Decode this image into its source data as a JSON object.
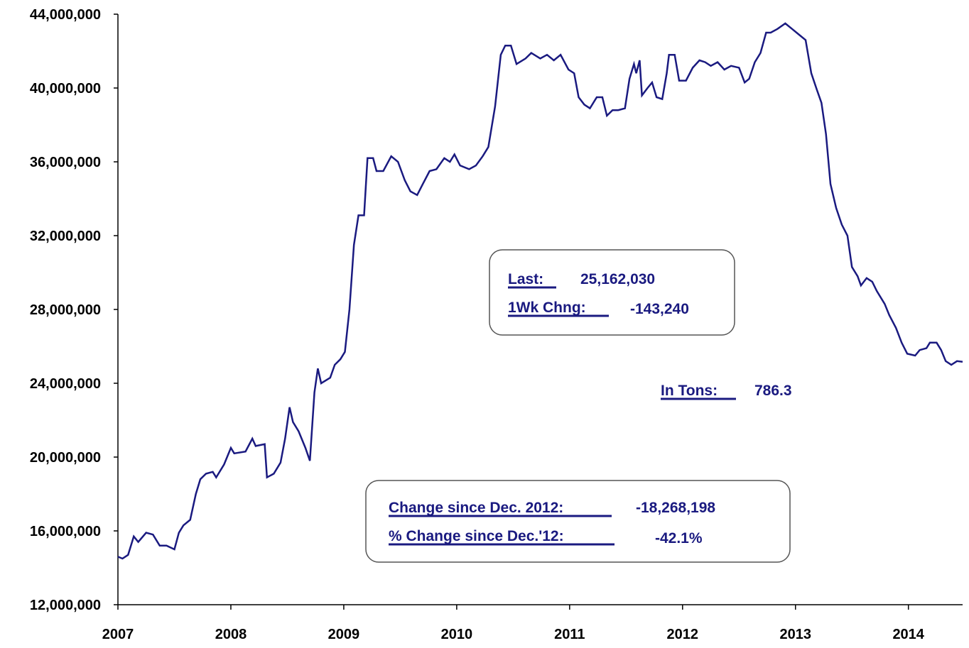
{
  "chart_data": {
    "type": "line",
    "x": [
      2007.0,
      2007.04,
      2007.09,
      2007.14,
      2007.18,
      2007.25,
      2007.31,
      2007.37,
      2007.43,
      2007.5,
      2007.54,
      2007.58,
      2007.64,
      2007.69,
      2007.73,
      2007.78,
      2007.84,
      2007.87,
      2007.94,
      2008.0,
      2008.03,
      2008.13,
      2008.19,
      2008.22,
      2008.3,
      2008.32,
      2008.38,
      2008.44,
      2008.48,
      2008.52,
      2008.55,
      2008.6,
      2008.66,
      2008.7,
      2008.74,
      2008.77,
      2008.8,
      2008.88,
      2008.92,
      2008.97,
      2009.01,
      2009.05,
      2009.09,
      2009.13,
      2009.18,
      2009.21,
      2009.26,
      2009.29,
      2009.35,
      2009.42,
      2009.48,
      2009.54,
      2009.59,
      2009.65,
      2009.7,
      2009.76,
      2009.82,
      2009.89,
      2009.94,
      2009.98,
      2010.03,
      2010.11,
      2010.17,
      2010.23,
      2010.28,
      2010.34,
      2010.39,
      2010.43,
      2010.48,
      2010.53,
      2010.61,
      2010.66,
      2010.74,
      2010.8,
      2010.86,
      2010.92,
      2010.99,
      2011.04,
      2011.08,
      2011.13,
      2011.18,
      2011.24,
      2011.29,
      2011.33,
      2011.38,
      2011.43,
      2011.49,
      2011.53,
      2011.57,
      2011.59,
      2011.62,
      2011.64,
      2011.69,
      2011.73,
      2011.77,
      2011.82,
      2011.86,
      2011.88,
      2011.93,
      2011.97,
      2012.03,
      2012.09,
      2012.15,
      2012.2,
      2012.25,
      2012.31,
      2012.37,
      2012.43,
      2012.5,
      2012.55,
      2012.59,
      2012.64,
      2012.69,
      2012.74,
      2012.78,
      2012.84,
      2012.91,
      2012.97,
      2013.03,
      2013.09,
      2013.14,
      2013.19,
      2013.23,
      2013.27,
      2013.31,
      2013.36,
      2013.41,
      2013.46,
      2013.5,
      2013.55,
      2013.58,
      2013.63,
      2013.68,
      2013.72,
      2013.79,
      2013.83,
      2013.89,
      2013.94,
      2013.99,
      2014.06,
      2014.1,
      2014.16,
      2014.19,
      2014.25,
      2014.29,
      2014.33,
      2014.38,
      2014.43,
      2014.48
    ],
    "series": [
      {
        "color": "#1a1a80",
        "values": [
          14600000,
          14500000,
          14700000,
          15700000,
          15400000,
          15900000,
          15800000,
          15200000,
          15200000,
          15000000,
          15900000,
          16300000,
          16600000,
          18000000,
          18800000,
          19100000,
          19200000,
          18900000,
          19600000,
          20500000,
          20200000,
          20300000,
          21000000,
          20600000,
          20700000,
          18900000,
          19100000,
          19700000,
          21000000,
          22700000,
          21900000,
          21400000,
          20500000,
          19800000,
          23500000,
          24800000,
          24000000,
          24300000,
          25000000,
          25300000,
          25700000,
          28000000,
          31500000,
          33100000,
          33100000,
          36200000,
          36200000,
          35500000,
          35500000,
          36300000,
          36000000,
          35000000,
          34400000,
          34200000,
          34800000,
          35500000,
          35600000,
          36200000,
          36000000,
          36400000,
          35800000,
          35600000,
          35800000,
          36300000,
          36800000,
          39000000,
          41800000,
          42300000,
          42300000,
          41300000,
          41600000,
          41900000,
          41600000,
          41800000,
          41500000,
          41800000,
          41000000,
          40800000,
          39500000,
          39100000,
          38900000,
          39500000,
          39500000,
          38500000,
          38800000,
          38800000,
          38900000,
          40500000,
          41300000,
          40800000,
          41500000,
          39600000,
          40000000,
          40300000,
          39500000,
          39400000,
          40800000,
          41800000,
          41800000,
          40400000,
          40400000,
          41100000,
          41500000,
          41400000,
          41200000,
          41400000,
          41000000,
          41200000,
          41100000,
          40300000,
          40500000,
          41400000,
          41900000,
          43000000,
          43000000,
          43200000,
          43500000,
          43200000,
          42900000,
          42600000,
          40800000,
          39900000,
          39200000,
          37500000,
          34800000,
          33500000,
          32600000,
          32000000,
          30300000,
          29800000,
          29300000,
          29700000,
          29500000,
          29000000,
          28300000,
          27700000,
          27000000,
          26200000,
          25600000,
          25500000,
          25800000,
          25900000,
          26200000,
          26200000,
          25800000,
          25200000,
          25000000,
          25200000,
          25162030
        ]
      }
    ],
    "xlim": [
      2007,
      2014.48
    ],
    "xticks": [
      2007,
      2008,
      2009,
      2010,
      2011,
      2012,
      2013,
      2014
    ],
    "ylim": [
      12000000,
      44000000
    ],
    "yticks": [
      {
        "value": 12000000,
        "label": "12,000,000"
      },
      {
        "value": 16000000,
        "label": "16,000,000"
      },
      {
        "value": 20000000,
        "label": "20,000,000"
      },
      {
        "value": 24000000,
        "label": "24,000,000"
      },
      {
        "value": 28000000,
        "label": "28,000,000"
      },
      {
        "value": 32000000,
        "label": "32,000,000"
      },
      {
        "value": 36000000,
        "label": "36,000,000"
      },
      {
        "value": 40000000,
        "label": "40,000,000"
      },
      {
        "value": 44000000,
        "label": "44,000,000"
      }
    ],
    "grid": false,
    "annotations": [
      "Last:",
      "25,162,030",
      "1Wk Chng:",
      "-143,240",
      "In Tons:",
      "786.3",
      "Change since Dec. 2012:",
      "-18,268,198",
      "% Change since Dec.'12:",
      "-42.1%"
    ]
  }
}
